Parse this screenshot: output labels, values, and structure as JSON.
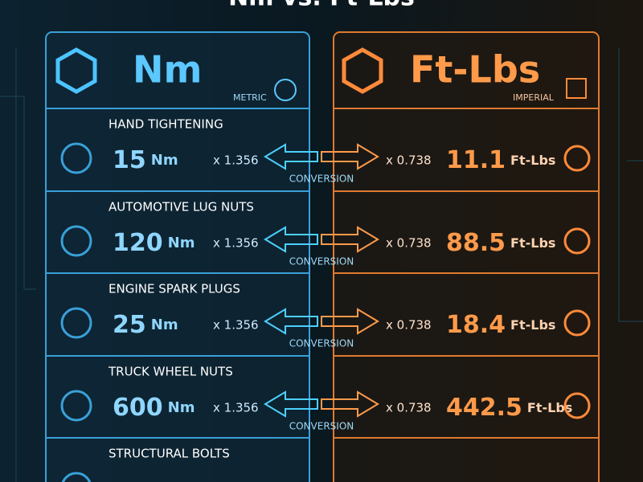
{
  "title": "Nm vs. Ft-Lbs",
  "left_panel": {
    "heading": "Nm",
    "subheading": "METRIC"
  },
  "right_panel": {
    "heading": "Ft-Lbs",
    "subheading": "IMPERIAL"
  },
  "rows": [
    {
      "label": "HAND TIGHTENING",
      "nm_value": "15",
      "nm_unit": "Nm",
      "to_ftlbs": "x 1.356",
      "conversion": "CONVERSION",
      "to_nm": "x 0.738",
      "ftlbs_value": "11.1",
      "ftlbs_unit": "Ft-Lbs"
    },
    {
      "label": "AUTOMOTIVE LUG NUTS",
      "nm_value": "120",
      "nm_unit": "Nm",
      "to_ftlbs": "x 1.356",
      "conversion": "CONVERSION",
      "to_nm": "x 0.738",
      "ftlbs_value": "88.5",
      "ftlbs_unit": "Ft-Lbs"
    },
    {
      "label": "ENGINE SPARK PLUGS",
      "nm_value": "25",
      "nm_unit": "Nm",
      "to_ftlbs": "x 1.356",
      "conversion": "CONVERSION",
      "to_nm": "x 0.738",
      "ftlbs_value": "18.4",
      "ftlbs_unit": "Ft-Lbs"
    },
    {
      "label": "TRUCK WHEEL NUTS",
      "nm_value": "600",
      "nm_unit": "Nm",
      "to_ftlbs": "x 1.356",
      "conversion": "CONVERSION",
      "to_nm": "x 0.738",
      "ftlbs_value": "442.5",
      "ftlbs_unit": "Ft-Lbs"
    },
    {
      "label": "STRUCTURAL BOLTS"
    }
  ]
}
